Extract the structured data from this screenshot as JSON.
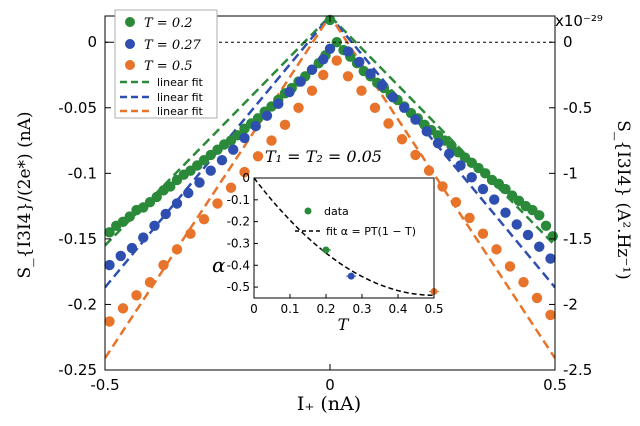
{
  "chart_data": [
    {
      "type": "scatter",
      "xlabel": "I₊ (nA)",
      "ylabel_left": "S_{I3I4}/(2e*) (nA)",
      "ylabel_right": "S_{I3I4} (A².Hz⁻¹)",
      "right_axis_exponent": "x10⁻²⁹",
      "annotation": "T₁ = T₂ = 0.05",
      "xlim": [
        -0.5,
        0.5
      ],
      "ylim": [
        -0.25,
        0.02
      ],
      "xticks": [
        "-0.5",
        "0",
        "0.5"
      ],
      "yticks_left": [
        "0",
        "-0.05",
        "-0.1",
        "-0.15",
        "-0.2",
        "-0.25"
      ],
      "yticks_right": [
        "0",
        "-0.5",
        "-1",
        "-1.5",
        "-2",
        "-2.5"
      ],
      "series": [
        {
          "name": "T = 0.2",
          "color": "#2a8a3a",
          "x": [
            -0.49,
            -0.475,
            -0.46,
            -0.445,
            -0.43,
            -0.415,
            -0.4,
            -0.385,
            -0.37,
            -0.355,
            -0.34,
            -0.325,
            -0.31,
            -0.295,
            -0.28,
            -0.265,
            -0.25,
            -0.235,
            -0.22,
            -0.205,
            -0.19,
            -0.175,
            -0.16,
            -0.145,
            -0.13,
            -0.115,
            -0.1,
            -0.085,
            -0.07,
            -0.055,
            -0.04,
            -0.025,
            -0.01,
            0.0,
            0.015,
            0.03,
            0.045,
            0.06,
            0.075,
            0.09,
            0.105,
            0.12,
            0.135,
            0.15,
            0.165,
            0.18,
            0.195,
            0.21,
            0.225,
            0.24,
            0.255,
            0.27,
            0.285,
            0.3,
            0.315,
            0.33,
            0.345,
            0.36,
            0.375,
            0.39,
            0.405,
            0.42,
            0.435,
            0.45,
            0.465,
            0.48,
            0.495
          ],
          "y": [
            -0.145,
            -0.14,
            -0.137,
            -0.133,
            -0.128,
            -0.126,
            -0.122,
            -0.118,
            -0.113,
            -0.11,
            -0.105,
            -0.101,
            -0.098,
            -0.094,
            -0.09,
            -0.086,
            -0.082,
            -0.078,
            -0.075,
            -0.071,
            -0.066,
            -0.062,
            -0.058,
            -0.053,
            -0.049,
            -0.044,
            -0.039,
            -0.035,
            -0.03,
            -0.026,
            -0.021,
            -0.016,
            -0.01,
            0.017,
            0.0,
            -0.006,
            -0.011,
            -0.016,
            -0.022,
            -0.026,
            -0.031,
            -0.035,
            -0.04,
            -0.044,
            -0.049,
            -0.054,
            -0.058,
            -0.063,
            -0.067,
            -0.071,
            -0.075,
            -0.079,
            -0.084,
            -0.088,
            -0.092,
            -0.096,
            -0.1,
            -0.105,
            -0.108,
            -0.112,
            -0.117,
            -0.121,
            -0.125,
            -0.128,
            -0.132,
            -0.14,
            -0.148
          ]
        },
        {
          "name": "T = 0.27",
          "color": "#2e4fb0",
          "x": [
            -0.49,
            -0.465,
            -0.44,
            -0.415,
            -0.39,
            -0.365,
            -0.34,
            -0.315,
            -0.29,
            -0.265,
            -0.24,
            -0.215,
            -0.19,
            -0.165,
            -0.14,
            -0.115,
            -0.09,
            -0.065,
            -0.04,
            -0.015,
            0.0,
            0.04,
            0.065,
            0.09,
            0.115,
            0.14,
            0.165,
            0.19,
            0.215,
            0.24,
            0.265,
            0.29,
            0.315,
            0.34,
            0.365,
            0.39,
            0.415,
            0.44,
            0.465,
            0.49
          ],
          "y": [
            -0.17,
            -0.163,
            -0.157,
            -0.149,
            -0.14,
            -0.131,
            -0.123,
            -0.115,
            -0.107,
            -0.098,
            -0.09,
            -0.082,
            -0.073,
            -0.064,
            -0.056,
            -0.047,
            -0.038,
            -0.03,
            -0.021,
            -0.013,
            -0.005,
            -0.007,
            -0.015,
            -0.024,
            -0.033,
            -0.042,
            -0.05,
            -0.059,
            -0.068,
            -0.077,
            -0.085,
            -0.094,
            -0.103,
            -0.112,
            -0.12,
            -0.13,
            -0.139,
            -0.147,
            -0.156,
            -0.165
          ]
        },
        {
          "name": "T = 0.5",
          "color": "#e8732a",
          "x": [
            -0.49,
            -0.46,
            -0.43,
            -0.4,
            -0.37,
            -0.34,
            -0.31,
            -0.28,
            -0.25,
            -0.22,
            -0.19,
            -0.16,
            -0.13,
            -0.1,
            -0.07,
            -0.04,
            -0.015,
            0.015,
            0.04,
            0.07,
            0.1,
            0.13,
            0.16,
            0.19,
            0.22,
            0.25,
            0.28,
            0.31,
            0.34,
            0.37,
            0.4,
            0.43,
            0.46,
            0.49
          ],
          "y": [
            -0.213,
            -0.203,
            -0.193,
            -0.183,
            -0.17,
            -0.158,
            -0.146,
            -0.135,
            -0.123,
            -0.111,
            -0.099,
            -0.087,
            -0.075,
            -0.063,
            -0.05,
            -0.037,
            -0.025,
            -0.014,
            -0.026,
            -0.037,
            -0.05,
            -0.062,
            -0.074,
            -0.086,
            -0.098,
            -0.11,
            -0.122,
            -0.134,
            -0.146,
            -0.158,
            -0.171,
            -0.183,
            -0.195,
            -0.208
          ]
        }
      ],
      "fits": [
        {
          "name": "linear fit",
          "color": "#2a8a3a",
          "x": [
            -0.5,
            0.0,
            0.5
          ],
          "y": [
            -0.155,
            0.02,
            -0.155
          ]
        },
        {
          "name": "linear fit",
          "color": "#2e4fb0",
          "x": [
            -0.5,
            0.0,
            0.5
          ],
          "y": [
            -0.187,
            0.02,
            -0.187
          ]
        },
        {
          "name": "linear fit",
          "color": "#e8732a",
          "x": [
            -0.5,
            0.0,
            0.5
          ],
          "y": [
            -0.241,
            0.02,
            -0.241
          ]
        }
      ],
      "legend_position": "top-left"
    },
    {
      "type": "scatter",
      "role": "inset",
      "xlabel": "T",
      "ylabel": "α",
      "xlim": [
        0,
        0.5
      ],
      "ylim": [
        -0.55,
        0
      ],
      "xticks": [
        "0",
        "0.1",
        "0.2",
        "0.3",
        "0.4",
        "0.5"
      ],
      "yticks": [
        "0",
        "-0.1",
        "-0.2",
        "-0.3",
        "-0.4",
        "-0.5"
      ],
      "series": [
        {
          "name": "data",
          "color": "#2a8a3a",
          "x": [
            0.2
          ],
          "y": [
            -0.33
          ]
        },
        {
          "name": "data",
          "color": "#2e4fb0",
          "x": [
            0.27
          ],
          "y": [
            -0.45
          ]
        },
        {
          "name": "data",
          "color": "#e8732a",
          "x": [
            0.5
          ],
          "y": [
            -0.52
          ]
        }
      ],
      "fit": {
        "label": "fit α = PT(1 − T)",
        "P": 2.15
      },
      "legend_position": "top-right"
    }
  ]
}
